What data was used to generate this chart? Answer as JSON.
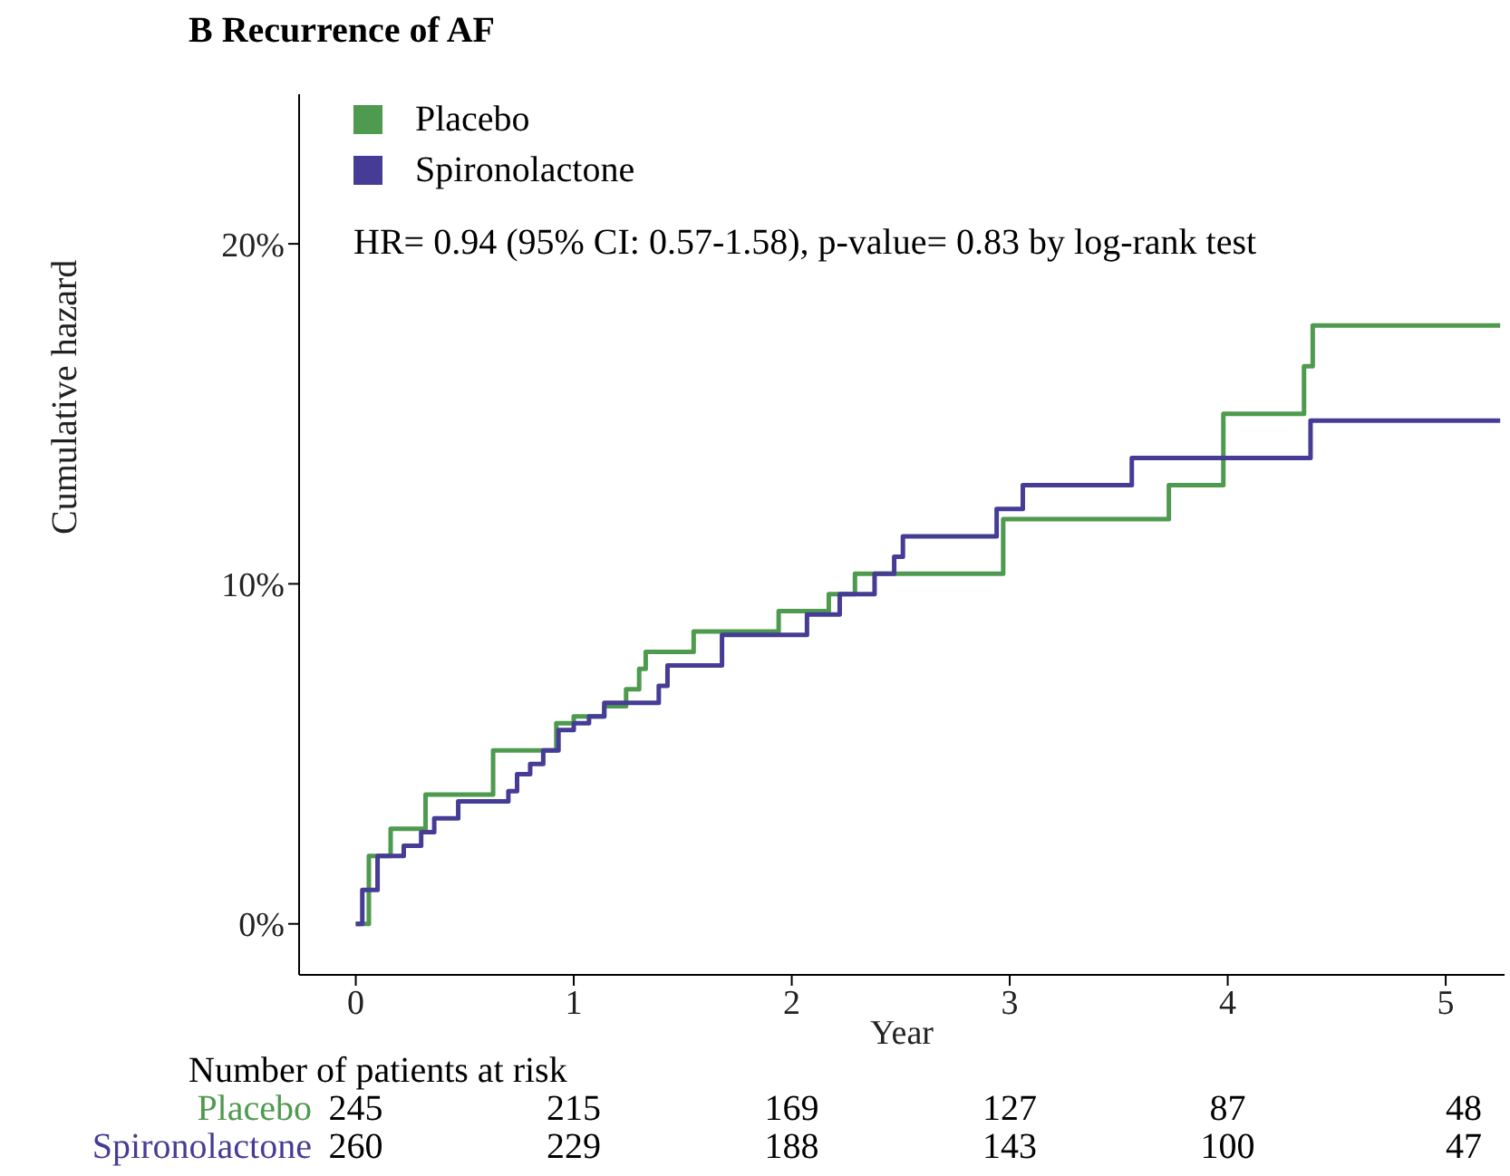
{
  "chart_data": {
    "type": "step",
    "title": "B Recurrence of AF",
    "xlabel": "Year",
    "ylabel": "Cumulative hazard",
    "xlim": [
      -0.26,
      5.27
    ],
    "xticks": [
      0,
      1,
      2,
      3,
      4,
      5
    ],
    "ylim": [
      -1.5,
      24.4
    ],
    "yticks": [
      {
        "value": 0,
        "label": "0%"
      },
      {
        "value": 10,
        "label": "10%"
      },
      {
        "value": 20,
        "label": "20%"
      }
    ],
    "grid": false,
    "legend": "top left",
    "annotations": [
      "HR= 0.94 (95% CI: 0.57-1.58), p-value= 0.83 by log-rank test",
      "Number of patients at risk",
      "Placebo",
      "245",
      "215",
      "169",
      "127",
      "87",
      "48",
      "Spironolactone",
      "260",
      "229",
      "188",
      "143",
      "100",
      "47"
    ],
    "series": [
      {
        "name": "Placebo",
        "color": "#4e9a4e",
        "x": [
          0,
          0.06,
          0.16,
          0.32,
          0.63,
          0.92,
          1.0,
          1.14,
          1.24,
          1.3,
          1.33,
          1.55,
          1.94,
          2.17,
          2.29,
          2.97,
          3.73,
          3.98,
          4.35,
          4.39,
          5.25
        ],
        "values": [
          0,
          2.0,
          2.8,
          3.8,
          5.1,
          5.9,
          6.1,
          6.4,
          6.9,
          7.5,
          8.0,
          8.6,
          9.2,
          9.7,
          10.3,
          11.9,
          12.9,
          15.0,
          16.4,
          17.6,
          17.6
        ]
      },
      {
        "name": "Spironolactone",
        "color": "#463c96",
        "x": [
          0,
          0.03,
          0.1,
          0.22,
          0.3,
          0.36,
          0.47,
          0.7,
          0.74,
          0.8,
          0.86,
          0.93,
          1.0,
          1.07,
          1.14,
          1.39,
          1.43,
          1.68,
          2.07,
          2.22,
          2.38,
          2.47,
          2.51,
          2.94,
          3.06,
          3.56,
          4.38,
          5.25
        ],
        "values": [
          0,
          1.0,
          2.0,
          2.3,
          2.7,
          3.1,
          3.6,
          3.9,
          4.4,
          4.7,
          5.1,
          5.7,
          5.9,
          6.1,
          6.5,
          7.0,
          7.6,
          8.5,
          9.1,
          9.7,
          10.3,
          10.8,
          11.4,
          12.2,
          12.9,
          13.7,
          14.8,
          14.8
        ]
      }
    ]
  }
}
